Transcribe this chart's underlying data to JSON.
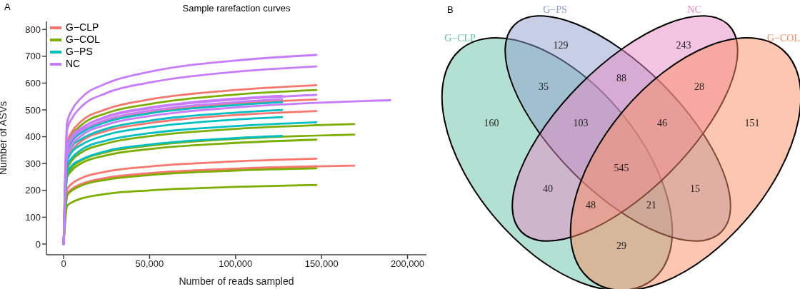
{
  "chart_data": [
    {
      "type": "line",
      "title": "Sample rarefaction curves",
      "xlabel": "Number of reads sampled",
      "ylabel": "Number of ASVs",
      "annotations": [
        "A"
      ],
      "xlim": [
        -10000,
        211000
      ],
      "xticks": [
        0,
        {
          "value": 50000,
          "label": "50,000"
        },
        {
          "value": 100000,
          "label": "100,000"
        },
        {
          "value": 150000,
          "label": "150,000"
        },
        {
          "value": 200000,
          "label": "200,000"
        }
      ],
      "ylim": [
        -40,
        830
      ],
      "yticks": [
        0,
        100,
        200,
        300,
        400,
        500,
        600,
        700,
        800
      ],
      "grid": false,
      "legend": "top left",
      "marker": "none",
      "line_style": "solid",
      "series": [
        {
          "name": "G−CLP",
          "color": "#f8766d",
          "x": [
            0,
            2000,
            5000,
            10000,
            25000,
            50000,
            100000,
            147000
          ],
          "values": [
            0,
            379,
            420,
            456,
            503,
            539,
            574,
            592
          ]
        },
        {
          "color": "#f8766d",
          "x": [
            2000,
            5000,
            10000,
            25000,
            50000,
            100000,
            147000
          ],
          "values": [
            345,
            383,
            415,
            458,
            490,
            523,
            539
          ]
        },
        {
          "color": "#f8766d",
          "x": [
            0,
            2000,
            5000,
            10000,
            25000,
            50000,
            100000,
            147000
          ],
          "values": [
            0,
            317,
            352,
            382,
            422,
            451,
            481,
            496
          ]
        },
        {
          "color": "#f8766d",
          "x": [
            0,
            2000,
            5000,
            10000,
            25000,
            50000,
            100000,
            147000
          ],
          "values": [
            0,
            204,
            226,
            245,
            270,
            289,
            308,
            318
          ]
        },
        {
          "color": "#f8766d",
          "x": [
            0,
            2000,
            5000,
            10000,
            25000,
            50000,
            100000,
            169000
          ],
          "values": [
            0,
            181,
            204,
            222,
            245,
            263,
            280,
            292
          ]
        },
        {
          "color": "#f8766d",
          "x": [
            0,
            2000,
            5000,
            10000,
            25000,
            50000,
            100000,
            147000
          ],
          "values": [
            0,
            186,
            206,
            223,
            247,
            264,
            281,
            290
          ]
        },
        {
          "name": "G−COL",
          "color": "#7cae00",
          "x": [
            0,
            2000,
            5000,
            10000,
            25000,
            50000,
            100000,
            147000
          ],
          "values": [
            0,
            367,
            408,
            442,
            488,
            522,
            557,
            574
          ]
        },
        {
          "color": "#7cae00",
          "x": [
            0,
            2000,
            5000,
            10000,
            25000,
            50000,
            100000,
            169000
          ],
          "values": [
            0,
            277,
            313,
            340,
            375,
            402,
            429,
            447
          ]
        },
        {
          "color": "#7cae00",
          "x": [
            0,
            2000,
            5000,
            10000,
            25000,
            50000,
            100000,
            169000
          ],
          "values": [
            0,
            253,
            286,
            310,
            343,
            367,
            392,
            408
          ]
        },
        {
          "color": "#7cae00",
          "x": [
            0,
            2000,
            5000,
            10000,
            25000,
            50000,
            100000,
            147000
          ],
          "values": [
            0,
            249,
            276,
            300,
            331,
            354,
            377,
            389
          ]
        },
        {
          "color": "#7cae00",
          "x": [
            0,
            2000,
            5000,
            10000,
            25000,
            50000,
            100000,
            147000
          ],
          "values": [
            0,
            180,
            200,
            217,
            240,
            257,
            274,
            282
          ]
        },
        {
          "color": "#7cae00",
          "x": [
            0,
            2000,
            5000,
            10000,
            25000,
            50000,
            100000,
            147000
          ],
          "values": [
            0,
            141,
            156,
            169,
            187,
            200,
            213,
            220
          ]
        },
        {
          "name": "G−PS",
          "color": "#00bfc4",
          "x": [
            0,
            2000,
            5000,
            10000,
            25000,
            50000,
            100000,
            127000
          ],
          "values": [
            0,
            344,
            386,
            413,
            455,
            487,
            518,
            529
          ]
        },
        {
          "color": "#00bfc4",
          "x": [
            0,
            2000,
            5000,
            10000,
            25000,
            50000,
            100000,
            127000
          ],
          "values": [
            0,
            325,
            365,
            390,
            430,
            460,
            490,
            500
          ]
        },
        {
          "color": "#00bfc4",
          "x": [
            0,
            2000,
            5000,
            10000,
            25000,
            50000,
            100000,
            127000
          ],
          "values": [
            0,
            307,
            345,
            369,
            407,
            435,
            464,
            473
          ]
        },
        {
          "color": "#00bfc4",
          "x": [
            0,
            2000,
            5000,
            10000,
            25000,
            50000,
            100000,
            147000
          ],
          "values": [
            0,
            291,
            322,
            350,
            386,
            413,
            440,
            454
          ]
        },
        {
          "color": "#00bfc4",
          "x": [
            0,
            2000,
            5000,
            10000,
            25000,
            50000,
            100000,
            127000
          ],
          "values": [
            0,
            262,
            294,
            314,
            347,
            371,
            395,
            403
          ]
        },
        {
          "name": "NC",
          "color": "#c77cff",
          "x": [
            0,
            2000,
            5000,
            10000,
            25000,
            50000,
            100000,
            147000
          ],
          "values": [
            0,
            451,
            501,
            543,
            599,
            642,
            684,
            705
          ]
        },
        {
          "color": "#c77cff",
          "x": [
            0,
            2000,
            5000,
            10000,
            25000,
            50000,
            100000,
            147000
          ],
          "values": [
            0,
            424,
            470,
            510,
            563,
            602,
            642,
            662
          ]
        },
        {
          "color": "#c77cff",
          "x": [
            0,
            2000,
            5000,
            10000,
            25000,
            50000,
            100000,
            147000
          ],
          "values": [
            0,
            356,
            395,
            428,
            473,
            506,
            539,
            556
          ]
        },
        {
          "color": "#c77cff",
          "x": [
            0,
            2000,
            5000,
            10000,
            25000,
            50000,
            100000,
            190000
          ],
          "values": [
            0,
            327,
            370,
            402,
            445,
            477,
            509,
            536
          ]
        },
        {
          "color": "#c77cff",
          "x": [
            0,
            2000,
            5000,
            10000,
            25000,
            50000,
            100000,
            127000
          ],
          "values": [
            0,
            359,
            404,
            431,
            476,
            509,
            542,
            553
          ]
        },
        {
          "color": "#c77cff",
          "x": [
            0,
            2000,
            5000,
            10000,
            25000,
            50000,
            100000,
            127000
          ],
          "values": [
            0,
            351,
            394,
            421,
            464,
            497,
            529,
            540
          ]
        }
      ]
    },
    {
      "type": "other",
      "annotations": [
        "B",
        "160",
        "129",
        "243",
        "151",
        "35",
        "88",
        "28",
        "103",
        "46",
        "545",
        "40",
        "15",
        "48",
        "21",
        "29"
      ],
      "categories": [
        "G−CLP",
        "G−PS",
        "NC",
        "G−COL"
      ],
      "colors": [
        "#66c2a5",
        "#8da0cb",
        "#e78ac3",
        "#fc8d62"
      ]
    }
  ]
}
